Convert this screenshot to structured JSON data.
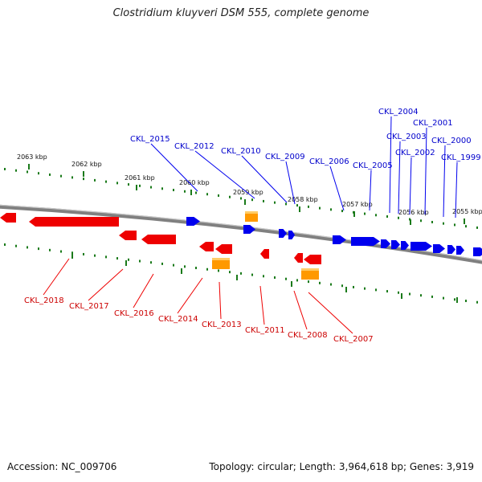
{
  "title": "Clostridium kluyveri DSM 555, complete genome",
  "footer": {
    "accession": "Accession: NC_009706",
    "topology": "Topology: circular; Length: 3,964,618 bp; Genes: 3,919"
  },
  "kbp_labels": [
    "2063 kbp",
    "2062 kbp",
    "2061 kbp",
    "2060 kbp",
    "2059 kbp",
    "2058 kbp",
    "2057 kbp",
    "2056 kbp",
    "2055 kbp"
  ],
  "genes_forward": [
    "CKL_2015",
    "CKL_2012",
    "CKL_2010",
    "CKL_2009",
    "CKL_2006",
    "CKL_2005",
    "CKL_2004",
    "CKL_2003",
    "CKL_2002",
    "CKL_2001",
    "CKL_2000",
    "CKL_1999"
  ],
  "genes_reverse": [
    "CKL_2018",
    "CKL_2017",
    "CKL_2016",
    "CKL_2014",
    "CKL_2013",
    "CKL_2011",
    "CKL_2008",
    "CKL_2007"
  ],
  "colors": {
    "forward_strand": "#0000ee",
    "reverse_strand": "#ee0000",
    "rna_feature": "#ff9900",
    "backbone": "#808080",
    "ticks": "#1a7a1a"
  }
}
